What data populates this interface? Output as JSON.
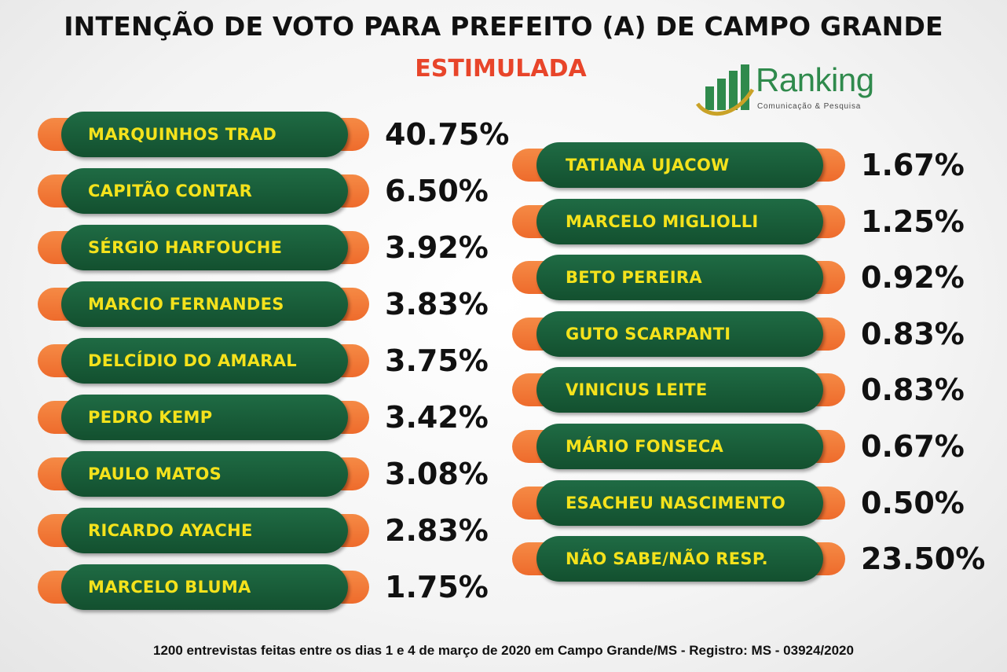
{
  "title": "INTENÇÃO DE VOTO PARA PREFEITO (A) DE CAMPO GRANDE",
  "subtitle": "ESTIMULADA",
  "logo": {
    "name": "Ranking",
    "tagline": "Comunicação & Pesquisa"
  },
  "footer": "1200 entrevistas feitas entre os dias 1 e 4 de março de 2020 em Campo Grande/MS - Registro: MS - 03924/2020",
  "colors": {
    "pill": "#1a5e3a",
    "accent": "#f07a38",
    "label": "#f4e21c",
    "subtitle": "#e8452a"
  },
  "chart_data": {
    "type": "table",
    "title": "INTENÇÃO DE VOTO PARA PREFEITO (A) DE CAMPO GRANDE",
    "subtitle": "ESTIMULADA",
    "unit": "%",
    "left_column": [
      {
        "name": "MARQUINHOS TRAD",
        "label": "40.75%",
        "value": 40.75
      },
      {
        "name": "CAPITÃO CONTAR",
        "label": "6.50%",
        "value": 6.5
      },
      {
        "name": "SÉRGIO HARFOUCHE",
        "label": "3.92%",
        "value": 3.92
      },
      {
        "name": "MARCIO FERNANDES",
        "label": "3.83%",
        "value": 3.83
      },
      {
        "name": "DELCÍDIO DO AMARAL",
        "label": "3.75%",
        "value": 3.75
      },
      {
        "name": "PEDRO KEMP",
        "label": "3.42%",
        "value": 3.42
      },
      {
        "name": "PAULO MATOS",
        "label": "3.08%",
        "value": 3.08
      },
      {
        "name": "RICARDO AYACHE",
        "label": "2.83%",
        "value": 2.83
      },
      {
        "name": "MARCELO BLUMA",
        "label": "1.75%",
        "value": 1.75
      }
    ],
    "right_column": [
      {
        "name": "TATIANA UJACOW",
        "label": "1.67%",
        "value": 1.67
      },
      {
        "name": "MARCELO MIGLIOLLI",
        "label": "1.25%",
        "value": 1.25
      },
      {
        "name": "BETO PEREIRA",
        "label": "0.92%",
        "value": 0.92
      },
      {
        "name": "GUTO SCARPANTI",
        "label": "0.83%",
        "value": 0.83
      },
      {
        "name": "VINICIUS LEITE",
        "label": "0.83%",
        "value": 0.83
      },
      {
        "name": "MÁRIO FONSECA",
        "label": "0.67%",
        "value": 0.67
      },
      {
        "name": "ESACHEU NASCIMENTO",
        "label": "0.50%",
        "value": 0.5
      },
      {
        "name": "NÃO SABE/NÃO RESP.",
        "label": "23.50%",
        "value": 23.5
      }
    ]
  }
}
